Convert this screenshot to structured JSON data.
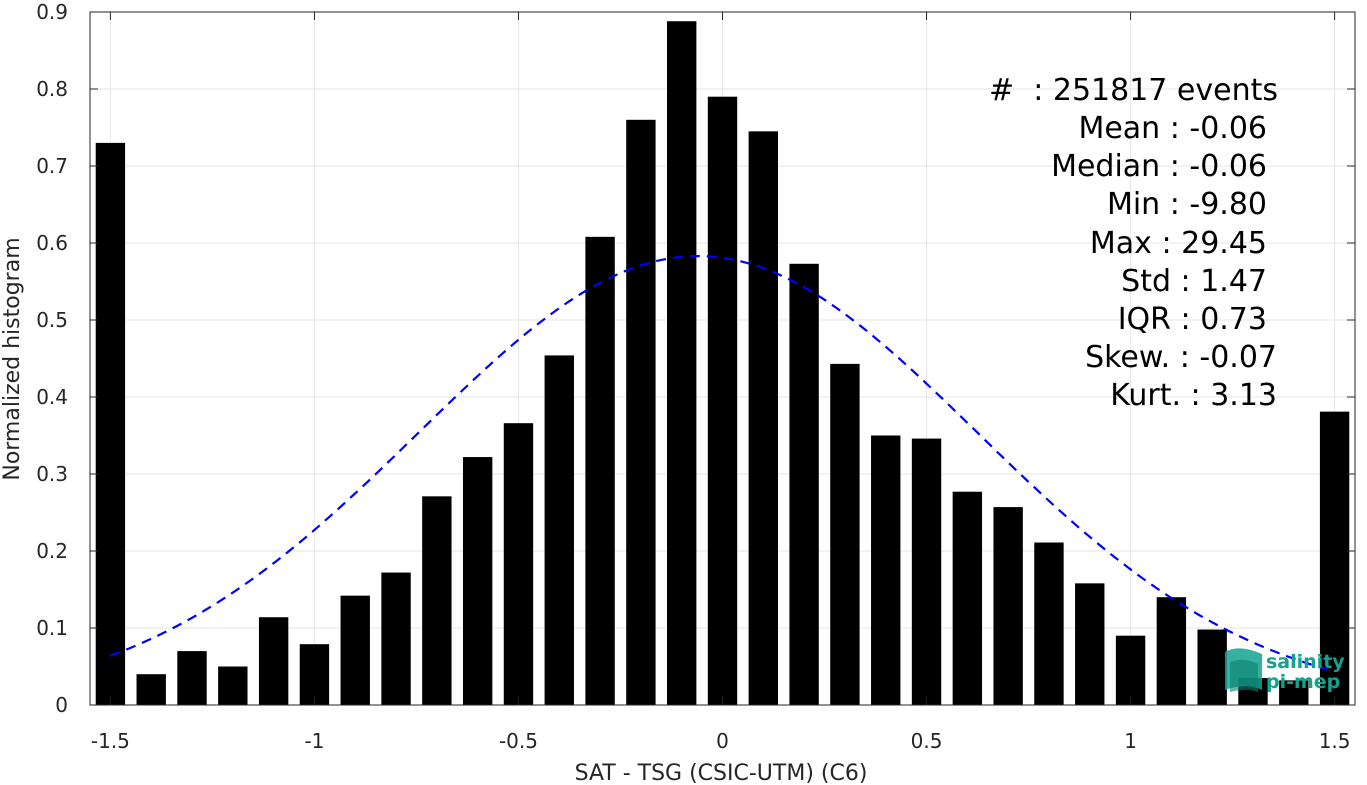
{
  "chart_data": {
    "type": "bar",
    "xlabel": "SAT - TSG (CSIC-UTM) (C6)",
    "ylabel": "Normalized histogram",
    "xlim": [
      -1.55,
      1.55
    ],
    "ylim": [
      0,
      0.9
    ],
    "xticks": [
      -1.5,
      -1,
      -0.5,
      0,
      0.5,
      1,
      1.5
    ],
    "xtick_labels": [
      "-1.5",
      "-1",
      "-0.5",
      "0",
      "0.5",
      "1",
      "1.5"
    ],
    "yticks": [
      0,
      0.1,
      0.2,
      0.3,
      0.4,
      0.5,
      0.6,
      0.7,
      0.8,
      0.9
    ],
    "ytick_labels": [
      "0",
      "0.1",
      "0.2",
      "0.3",
      "0.4",
      "0.5",
      "0.6",
      "0.7",
      "0.8",
      "0.9"
    ],
    "grid": true,
    "bar_color": "#000000",
    "bin_width": 0.1,
    "x": [
      -1.5,
      -1.4,
      -1.3,
      -1.2,
      -1.1,
      -1.0,
      -0.9,
      -0.8,
      -0.7,
      -0.6,
      -0.5,
      -0.4,
      -0.3,
      -0.2,
      -0.1,
      0.0,
      0.1,
      0.2,
      0.3,
      0.4,
      0.5,
      0.6,
      0.7,
      0.8,
      0.9,
      1.0,
      1.1,
      1.2,
      1.3,
      1.4,
      1.5
    ],
    "values": [
      0.73,
      0.04,
      0.07,
      0.05,
      0.114,
      0.079,
      0.142,
      0.172,
      0.271,
      0.322,
      0.366,
      0.454,
      0.608,
      0.76,
      0.888,
      0.79,
      0.745,
      0.573,
      0.443,
      0.35,
      0.346,
      0.277,
      0.257,
      0.211,
      0.158,
      0.09,
      0.14,
      0.098,
      0.035,
      0.032,
      0.381
    ],
    "fit": {
      "type": "gaussian",
      "color": "#0000ff",
      "style": "dashed",
      "mean": -0.06,
      "std": 0.685,
      "peak": 0.583
    },
    "stats": [
      "#  : 251817 events",
      "Mean : -0.06",
      "Median : -0.06",
      "Min : -9.80",
      "Max : 29.45",
      "Std : 1.47",
      "IQR : 0.73",
      "Skew. : -0.07",
      "Kurt. : 3.13"
    ]
  },
  "logo": {
    "line1": "salinity",
    "line2": "pi-mep",
    "color": "#12a38e"
  }
}
